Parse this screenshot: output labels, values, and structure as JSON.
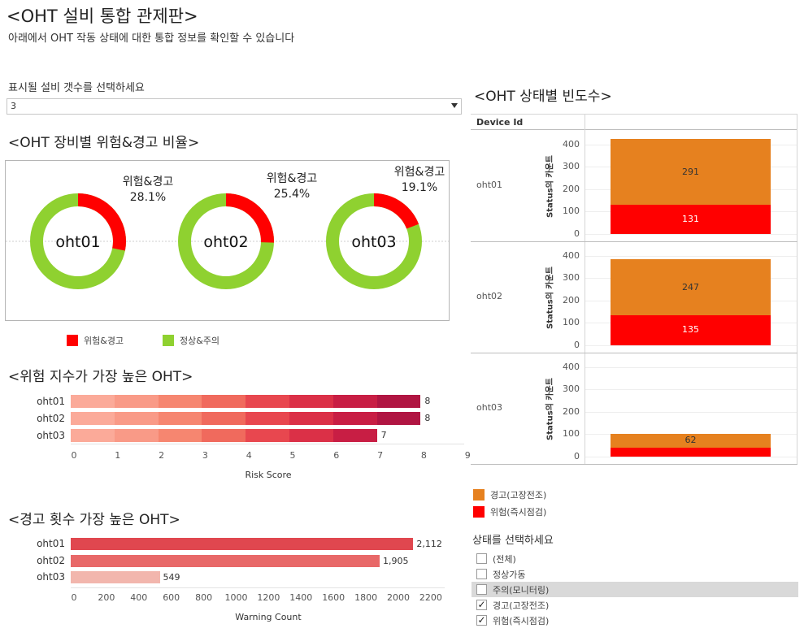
{
  "header": {
    "title": "<OHT 설비 통합 관제판>",
    "subtitle": "아래에서 OHT 작동 상태에 대한 통합 정보를 확인할 수 있습니다"
  },
  "device_filter": {
    "label": "표시될 설비 갯수를 선택하세요",
    "value": "3"
  },
  "ratio_section": {
    "title": "<OHT 장비별 위험&경고 비율>",
    "donuts": [
      {
        "device": "oht01",
        "label": "위험&경고",
        "percent_text": "28.1%",
        "percent": 28.1
      },
      {
        "device": "oht02",
        "label": "위험&경고",
        "percent_text": "25.4%",
        "percent": 25.4
      },
      {
        "device": "oht03",
        "label": "위험&경고",
        "percent_text": "19.1%",
        "percent": 19.1
      }
    ],
    "legend": [
      {
        "label": "위험&경고",
        "color": "#ff0000"
      },
      {
        "label": "정상&주의",
        "color": "#8fd130"
      }
    ],
    "colors": {
      "risk": "#ff0000",
      "normal": "#8fd130"
    }
  },
  "risk_section": {
    "title": "<위험 지수가 가장 높은 OHT>",
    "axis_title": "Risk Score",
    "ticks": [
      "0",
      "1",
      "2",
      "3",
      "4",
      "5",
      "6",
      "7",
      "8",
      "9"
    ],
    "rows": [
      {
        "device": "oht01",
        "value": 8,
        "value_text": "8"
      },
      {
        "device": "oht02",
        "value": 8,
        "value_text": "8"
      },
      {
        "device": "oht03",
        "value": 7,
        "value_text": "7"
      }
    ],
    "segment_colors": [
      "#fbaa99",
      "#f99a87",
      "#f68670",
      "#f06a5d",
      "#e8474f",
      "#db3047",
      "#c81e44",
      "#b01542"
    ]
  },
  "warning_section": {
    "title": "<경고 횟수 가장 높은 OHT>",
    "axis_title": "Warning Count",
    "ticks": [
      "0",
      "200",
      "400",
      "600",
      "800",
      "1000",
      "1200",
      "1400",
      "1600",
      "1800",
      "2000",
      "2200"
    ],
    "rows": [
      {
        "device": "oht01",
        "value": 2112,
        "value_text": "2,112",
        "color": "#e0474f"
      },
      {
        "device": "oht02",
        "value": 1905,
        "value_text": "1,905",
        "color": "#e86868"
      },
      {
        "device": "oht03",
        "value": 549,
        "value_text": "549",
        "color": "#f2b6ad"
      }
    ]
  },
  "status_section": {
    "title": "<OHT 상태별 빈도수>",
    "column_header": "Device Id",
    "y_axis_title": "Status의 카운트",
    "ticks": [
      "0",
      "100",
      "200",
      "300",
      "400"
    ],
    "devices": [
      {
        "device": "oht01",
        "danger": 131,
        "danger_text": "131",
        "warning": 291,
        "warning_text": "291"
      },
      {
        "device": "oht02",
        "danger": 135,
        "danger_text": "135",
        "warning": 247,
        "warning_text": "247"
      },
      {
        "device": "oht03",
        "danger": 40,
        "danger_text": "",
        "warning": 62,
        "warning_text": "62"
      }
    ],
    "legend": [
      {
        "label": "경고(고장전조)",
        "color": "#e6811f"
      },
      {
        "label": "위험(즉시점검)",
        "color": "#ff0000"
      }
    ]
  },
  "status_filter": {
    "label": "상태를 선택하세요",
    "options": [
      {
        "label": "(전체)",
        "checked": false,
        "highlight": false
      },
      {
        "label": "정상가동",
        "checked": false,
        "highlight": false
      },
      {
        "label": "주의(모니터링)",
        "checked": false,
        "highlight": true
      },
      {
        "label": "경고(고장전조)",
        "checked": true,
        "highlight": false
      },
      {
        "label": "위험(즉시점검)",
        "checked": true,
        "highlight": false
      }
    ]
  }
}
